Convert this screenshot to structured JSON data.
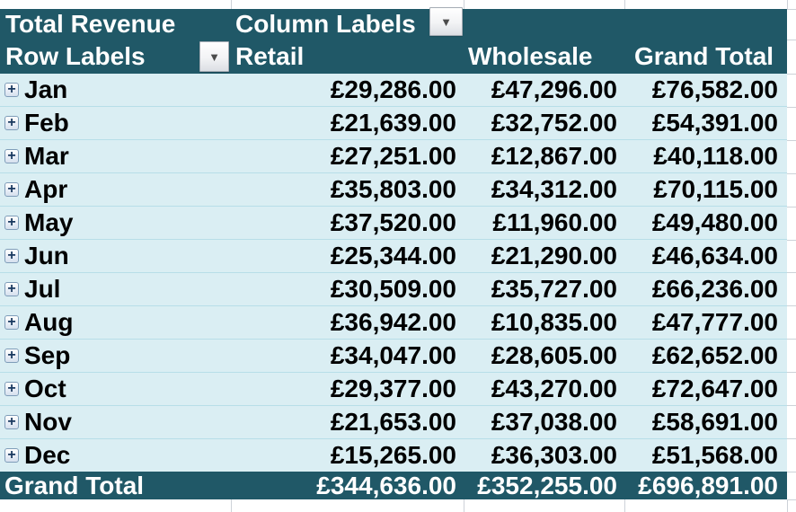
{
  "app": "spreadsheet-pivot-table",
  "colors": {
    "header_bg": "#205867",
    "row_bg": "#DAEEF3",
    "row_divider": "#B7DEE8",
    "gridline": "#CDD2D8",
    "header_text": "#FFFFFF",
    "body_text": "#000000"
  },
  "icons": {
    "filter_dropdown": "▼",
    "expand": "+"
  },
  "pivot": {
    "title": "Total Revenue",
    "column_labels_header": "Column Labels",
    "row_labels_header": "Row Labels",
    "columns": [
      "Retail",
      "Wholesale",
      "Grand Total"
    ],
    "rows": [
      {
        "label": "Jan",
        "retail": "£29,286.00",
        "wholesale": "£47,296.00",
        "total": "£76,582.00"
      },
      {
        "label": "Feb",
        "retail": "£21,639.00",
        "wholesale": "£32,752.00",
        "total": "£54,391.00"
      },
      {
        "label": "Mar",
        "retail": "£27,251.00",
        "wholesale": "£12,867.00",
        "total": "£40,118.00"
      },
      {
        "label": "Apr",
        "retail": "£35,803.00",
        "wholesale": "£34,312.00",
        "total": "£70,115.00"
      },
      {
        "label": "May",
        "retail": "£37,520.00",
        "wholesale": "£11,960.00",
        "total": "£49,480.00"
      },
      {
        "label": "Jun",
        "retail": "£25,344.00",
        "wholesale": "£21,290.00",
        "total": "£46,634.00"
      },
      {
        "label": "Jul",
        "retail": "£30,509.00",
        "wholesale": "£35,727.00",
        "total": "£66,236.00"
      },
      {
        "label": "Aug",
        "retail": "£36,942.00",
        "wholesale": "£10,835.00",
        "total": "£47,777.00"
      },
      {
        "label": "Sep",
        "retail": "£34,047.00",
        "wholesale": "£28,605.00",
        "total": "£62,652.00"
      },
      {
        "label": "Oct",
        "retail": "£29,377.00",
        "wholesale": "£43,270.00",
        "total": "£72,647.00"
      },
      {
        "label": "Nov",
        "retail": "£21,653.00",
        "wholesale": "£37,038.00",
        "total": "£58,691.00"
      },
      {
        "label": "Dec",
        "retail": "£15,265.00",
        "wholesale": "£36,303.00",
        "total": "£51,568.00"
      }
    ],
    "grand_total": {
      "label": "Grand Total",
      "retail": "£344,636.00",
      "wholesale": "£352,255.00",
      "total": "£696,891.00"
    }
  }
}
